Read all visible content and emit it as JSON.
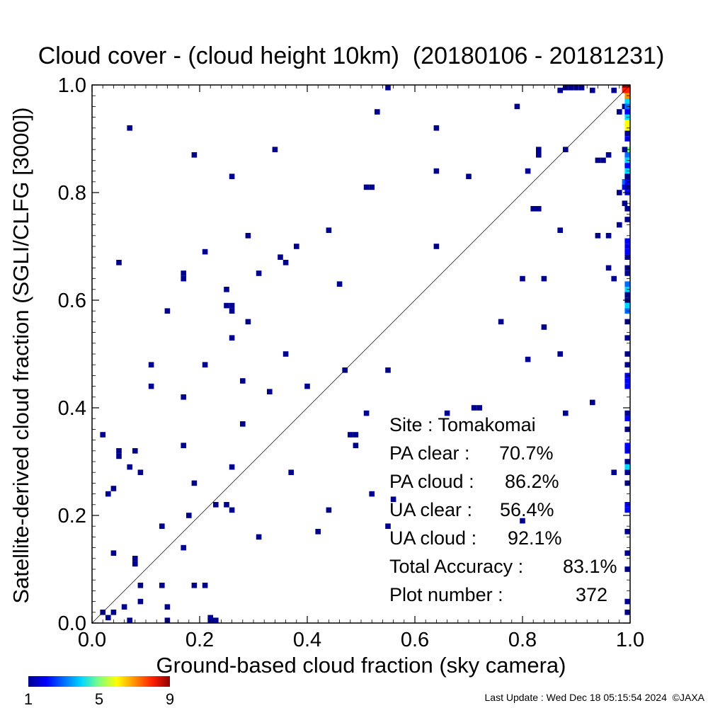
{
  "chart_data": {
    "type": "heatmap",
    "title": "Cloud cover - (cloud height 10km)  (20180106 - 20181231)",
    "xlabel": "Ground-based cloud fraction (sky camera)",
    "ylabel": "Satellite-derived cloud fraction (SGLI/CLFG [3000])",
    "xlim": [
      0.0,
      1.0
    ],
    "ylim": [
      0.0,
      1.0
    ],
    "x_ticks": [
      "0.0",
      "0.2",
      "0.4",
      "0.6",
      "0.8",
      "1.0"
    ],
    "y_ticks": [
      "0.0",
      "0.2",
      "0.4",
      "0.6",
      "0.8",
      "1.0"
    ],
    "reference_line": "y = x",
    "grid": false,
    "colorbar": {
      "min": 1,
      "max": 9,
      "labels": [
        "1",
        "5",
        "9"
      ],
      "colormap": "rainbow"
    },
    "stats": [
      {
        "label": "Site : Tomakomai",
        "value": ""
      },
      {
        "label": "PA clear :",
        "value": "70.7%"
      },
      {
        "label": "PA cloud :",
        "value": "86.2%"
      },
      {
        "label": "UA clear :",
        "value": "56.4%"
      },
      {
        "label": "UA cloud :",
        "value": "92.1%"
      },
      {
        "label": "Total Accuracy :",
        "value": "83.1%"
      },
      {
        "label": "Plot number :",
        "value": "372"
      }
    ],
    "points": [
      [
        0.55,
        1.0,
        1
      ],
      [
        0.88,
        1.0,
        1
      ],
      [
        0.89,
        1.0,
        1
      ],
      [
        0.9,
        1.0,
        1
      ],
      [
        0.91,
        1.0,
        1
      ],
      [
        0.93,
        0.99,
        1
      ],
      [
        0.87,
        0.99,
        1
      ],
      [
        0.97,
        0.99,
        1
      ],
      [
        0.99,
        1.0,
        9
      ],
      [
        1.0,
        1.0,
        9
      ],
      [
        0.99,
        0.99,
        8
      ],
      [
        1.0,
        0.99,
        8
      ],
      [
        1.0,
        0.98,
        7
      ],
      [
        1.0,
        0.97,
        4
      ],
      [
        0.99,
        0.96,
        1
      ],
      [
        1.0,
        0.96,
        3
      ],
      [
        1.0,
        0.95,
        2
      ],
      [
        0.98,
        0.95,
        1
      ],
      [
        1.0,
        0.94,
        4
      ],
      [
        1.0,
        0.93,
        6
      ],
      [
        1.0,
        0.92,
        6
      ],
      [
        1.0,
        0.91,
        1
      ],
      [
        1.0,
        0.9,
        2
      ],
      [
        1.0,
        0.88,
        5
      ],
      [
        0.99,
        0.88,
        1
      ],
      [
        1.0,
        0.87,
        3
      ],
      [
        1.0,
        0.86,
        4
      ],
      [
        1.0,
        0.85,
        2
      ],
      [
        1.0,
        0.84,
        4
      ],
      [
        1.0,
        0.83,
        1
      ],
      [
        0.99,
        0.82,
        3
      ],
      [
        1.0,
        0.82,
        2
      ],
      [
        0.99,
        0.81,
        2
      ],
      [
        1.0,
        0.81,
        1
      ],
      [
        1.0,
        0.8,
        2
      ],
      [
        0.98,
        0.8,
        1
      ],
      [
        0.99,
        0.78,
        1
      ],
      [
        1.0,
        0.77,
        1
      ],
      [
        1.0,
        0.75,
        1
      ],
      [
        0.98,
        0.74,
        1
      ],
      [
        1.0,
        0.71,
        2
      ],
      [
        1.0,
        0.7,
        2
      ],
      [
        1.0,
        0.69,
        2
      ],
      [
        1.0,
        0.68,
        1
      ],
      [
        1.0,
        0.66,
        1
      ],
      [
        1.0,
        0.65,
        1
      ],
      [
        1.0,
        0.63,
        3
      ],
      [
        1.0,
        0.62,
        4
      ],
      [
        1.0,
        0.61,
        1
      ],
      [
        1.0,
        0.6,
        1
      ],
      [
        1.0,
        0.59,
        4
      ],
      [
        1.0,
        0.58,
        3
      ],
      [
        1.0,
        0.56,
        1
      ],
      [
        1.0,
        0.53,
        1
      ],
      [
        1.0,
        0.5,
        1
      ],
      [
        1.0,
        0.48,
        1
      ],
      [
        1.0,
        0.46,
        2
      ],
      [
        1.0,
        0.45,
        2
      ],
      [
        1.0,
        0.44,
        2
      ],
      [
        1.0,
        0.39,
        1
      ],
      [
        1.0,
        0.38,
        2
      ],
      [
        1.0,
        0.36,
        1
      ],
      [
        1.0,
        0.33,
        2
      ],
      [
        1.0,
        0.32,
        2
      ],
      [
        1.0,
        0.3,
        1
      ],
      [
        1.0,
        0.29,
        4
      ],
      [
        1.0,
        0.28,
        1
      ],
      [
        1.0,
        0.26,
        1
      ],
      [
        1.0,
        0.22,
        2
      ],
      [
        1.0,
        0.21,
        2
      ],
      [
        1.0,
        0.17,
        1
      ],
      [
        1.0,
        0.13,
        1
      ],
      [
        1.0,
        0.1,
        1
      ],
      [
        1.0,
        0.04,
        1
      ],
      [
        1.0,
        0.02,
        1
      ],
      [
        0.79,
        0.96,
        1
      ],
      [
        0.53,
        0.95,
        1
      ],
      [
        0.64,
        0.92,
        1
      ],
      [
        0.07,
        0.92,
        1
      ],
      [
        0.34,
        0.88,
        1
      ],
      [
        0.19,
        0.87,
        1
      ],
      [
        0.83,
        0.87,
        1
      ],
      [
        0.83,
        0.88,
        1
      ],
      [
        0.88,
        0.88,
        1
      ],
      [
        0.96,
        0.87,
        1
      ],
      [
        0.95,
        0.86,
        1
      ],
      [
        0.94,
        0.86,
        1
      ],
      [
        0.26,
        0.83,
        1
      ],
      [
        0.64,
        0.84,
        1
      ],
      [
        0.7,
        0.83,
        1
      ],
      [
        0.81,
        0.84,
        1
      ],
      [
        0.51,
        0.81,
        1
      ],
      [
        0.52,
        0.81,
        1
      ],
      [
        0.82,
        0.77,
        1
      ],
      [
        0.83,
        0.77,
        1
      ],
      [
        0.44,
        0.73,
        1
      ],
      [
        0.87,
        0.73,
        1
      ],
      [
        0.29,
        0.72,
        1
      ],
      [
        0.94,
        0.72,
        1
      ],
      [
        0.96,
        0.72,
        1
      ],
      [
        0.38,
        0.7,
        1
      ],
      [
        0.64,
        0.7,
        1
      ],
      [
        0.21,
        0.69,
        1
      ],
      [
        0.35,
        0.68,
        1
      ],
      [
        0.36,
        0.67,
        1
      ],
      [
        0.05,
        0.67,
        1
      ],
      [
        0.31,
        0.65,
        1
      ],
      [
        0.17,
        0.65,
        1
      ],
      [
        0.17,
        0.64,
        1
      ],
      [
        0.46,
        0.63,
        1
      ],
      [
        0.8,
        0.64,
        1
      ],
      [
        0.84,
        0.64,
        1
      ],
      [
        0.96,
        0.66,
        1
      ],
      [
        0.97,
        0.64,
        1
      ],
      [
        0.25,
        0.62,
        1
      ],
      [
        0.25,
        0.59,
        1
      ],
      [
        0.26,
        0.59,
        1
      ],
      [
        0.26,
        0.58,
        1
      ],
      [
        0.14,
        0.58,
        1
      ],
      [
        0.29,
        0.56,
        1
      ],
      [
        0.76,
        0.56,
        1
      ],
      [
        0.84,
        0.55,
        1
      ],
      [
        0.26,
        0.53,
        1
      ],
      [
        0.36,
        0.5,
        1
      ],
      [
        0.87,
        0.5,
        1
      ],
      [
        0.81,
        0.49,
        1
      ],
      [
        0.11,
        0.48,
        1
      ],
      [
        0.21,
        0.48,
        1
      ],
      [
        0.47,
        0.47,
        1
      ],
      [
        0.55,
        0.47,
        1
      ],
      [
        0.28,
        0.45,
        1
      ],
      [
        0.11,
        0.44,
        1
      ],
      [
        0.4,
        0.44,
        1
      ],
      [
        0.33,
        0.43,
        1
      ],
      [
        0.17,
        0.42,
        1
      ],
      [
        0.71,
        0.4,
        1
      ],
      [
        0.72,
        0.4,
        1
      ],
      [
        0.93,
        0.41,
        1
      ],
      [
        0.51,
        0.39,
        1
      ],
      [
        0.66,
        0.39,
        1
      ],
      [
        0.88,
        0.39,
        1
      ],
      [
        0.28,
        0.37,
        1
      ],
      [
        0.02,
        0.35,
        1
      ],
      [
        0.48,
        0.35,
        1
      ],
      [
        0.49,
        0.35,
        1
      ],
      [
        0.17,
        0.33,
        1
      ],
      [
        0.49,
        0.33,
        1
      ],
      [
        0.05,
        0.32,
        1
      ],
      [
        0.08,
        0.32,
        1
      ],
      [
        0.05,
        0.31,
        1
      ],
      [
        0.07,
        0.29,
        1
      ],
      [
        0.26,
        0.29,
        1
      ],
      [
        0.09,
        0.28,
        1
      ],
      [
        0.37,
        0.28,
        1
      ],
      [
        0.97,
        0.28,
        1
      ],
      [
        0.19,
        0.26,
        1
      ],
      [
        0.04,
        0.25,
        1
      ],
      [
        0.03,
        0.24,
        1
      ],
      [
        0.52,
        0.24,
        1
      ],
      [
        0.56,
        0.23,
        1
      ],
      [
        0.23,
        0.22,
        1
      ],
      [
        0.25,
        0.22,
        1
      ],
      [
        0.26,
        0.21,
        1
      ],
      [
        0.44,
        0.21,
        1
      ],
      [
        0.18,
        0.2,
        1
      ],
      [
        0.8,
        0.19,
        1
      ],
      [
        0.13,
        0.18,
        1
      ],
      [
        0.55,
        0.18,
        1
      ],
      [
        0.42,
        0.17,
        1
      ],
      [
        0.31,
        0.16,
        1
      ],
      [
        0.17,
        0.14,
        1
      ],
      [
        0.04,
        0.13,
        1
      ],
      [
        0.08,
        0.12,
        1
      ],
      [
        0.08,
        0.11,
        1
      ],
      [
        0.09,
        0.07,
        1
      ],
      [
        0.13,
        0.07,
        1
      ],
      [
        0.19,
        0.07,
        1
      ],
      [
        0.21,
        0.07,
        1
      ],
      [
        0.09,
        0.04,
        1
      ],
      [
        0.14,
        0.03,
        1
      ],
      [
        0.06,
        0.03,
        1
      ],
      [
        0.02,
        0.02,
        1
      ],
      [
        0.04,
        0.02,
        1
      ],
      [
        0.03,
        0.01,
        1
      ],
      [
        0.07,
        0.0,
        1
      ],
      [
        0.14,
        0.0,
        1
      ],
      [
        0.22,
        0.01,
        1
      ],
      [
        0.22,
        0.0,
        1
      ],
      [
        0.23,
        0.0,
        1
      ]
    ]
  },
  "footer": "Last Update : Wed Dec 18 05:15:54 2024  ©JAXA"
}
